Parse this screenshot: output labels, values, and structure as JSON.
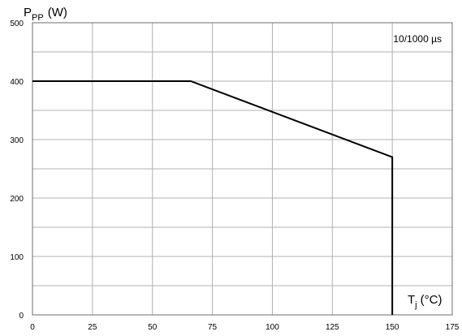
{
  "chart_data": {
    "type": "line",
    "ylabel": {
      "main": "P",
      "sub": "PP",
      "unit": "(W)"
    },
    "xlabel": {
      "main": "T",
      "sub": "j",
      "unit": "(°C)"
    },
    "annotation": "10/1000 µs",
    "xlim": [
      0,
      175
    ],
    "ylim": [
      0,
      500
    ],
    "x_major_ticks": [
      0,
      25,
      50,
      75,
      100,
      125,
      150,
      175
    ],
    "y_major_ticks": [
      0,
      100,
      200,
      300,
      400,
      500
    ],
    "x_tick_labels": [
      "0",
      "25",
      "50",
      "75",
      "100",
      "125",
      "150",
      "175"
    ],
    "y_tick_labels": [
      "0",
      "100",
      "200",
      "300",
      "400",
      "500"
    ],
    "grid": true,
    "grid_minor_y_step": 50,
    "series": [
      {
        "x": [
          0,
          66,
          150,
          150
        ],
        "y": [
          400,
          400,
          270,
          0
        ]
      }
    ],
    "colors": {
      "line": "#000000",
      "grid": "#b0b0b0",
      "frame": "#6e6e6e"
    }
  }
}
